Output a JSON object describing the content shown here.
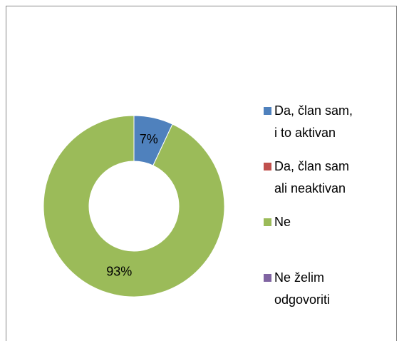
{
  "chart_data": {
    "type": "donut",
    "categories": [
      "Da, član sam, i to aktivan",
      "Da, član sam ali neaktivan",
      "Ne",
      "Ne želim odgovoriti"
    ],
    "values": [
      7,
      0,
      93,
      0
    ],
    "value_labels": [
      "7%",
      null,
      "93%",
      null
    ],
    "colors": [
      "#4f81bd",
      "#c0504d",
      "#9bbb59",
      "#8064a2"
    ],
    "legend": "right"
  }
}
